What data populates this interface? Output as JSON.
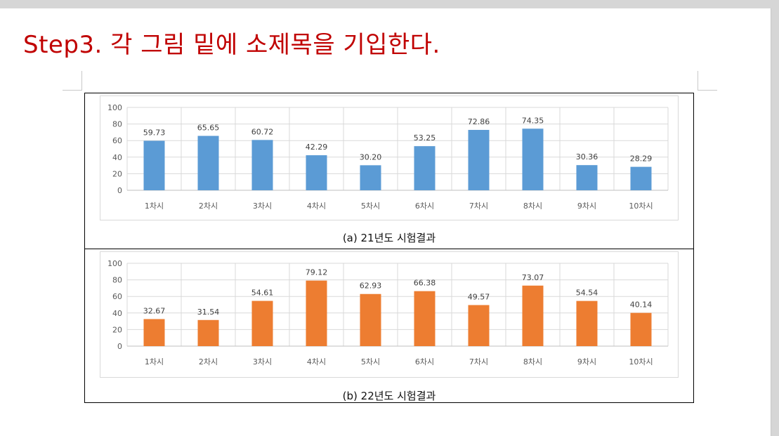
{
  "slide": {
    "title": "Step3. 각 그림 밑에 소제목을 기입한다."
  },
  "colors": {
    "title": "#c00000",
    "series_2021": "#5b9bd5",
    "series_2022": "#ed7d31",
    "gridline": "#d9d9d9",
    "tick_text": "#595959"
  },
  "figures": [
    {
      "caption": "(a) 21년도 시험결과"
    },
    {
      "caption": "(b) 22년도 시험결과"
    }
  ],
  "chart_data": [
    {
      "type": "bar",
      "title": "",
      "xlabel": "",
      "ylabel": "",
      "ylim": [
        0,
        100
      ],
      "yticks": [
        0,
        20,
        40,
        60,
        80,
        100
      ],
      "grid": true,
      "legend": "none",
      "color": "#5b9bd5",
      "categories": [
        "1차시",
        "2차시",
        "3차시",
        "4차시",
        "5차시",
        "6차시",
        "7차시",
        "8차시",
        "9차시",
        "10차시"
      ],
      "values": [
        59.73,
        65.65,
        60.72,
        42.29,
        30.2,
        53.25,
        72.86,
        74.35,
        30.36,
        28.29
      ],
      "value_labels": [
        "59.73",
        "65.65",
        "60.72",
        "42.29",
        "30.20",
        "53.25",
        "72.86",
        "74.35",
        "30.36",
        "28.29"
      ]
    },
    {
      "type": "bar",
      "title": "",
      "xlabel": "",
      "ylabel": "",
      "ylim": [
        0,
        100
      ],
      "yticks": [
        0,
        20,
        40,
        60,
        80,
        100
      ],
      "grid": true,
      "legend": "none",
      "color": "#ed7d31",
      "categories": [
        "1차시",
        "2차시",
        "3차시",
        "4차시",
        "5차시",
        "6차시",
        "7차시",
        "8차시",
        "9차시",
        "10차시"
      ],
      "values": [
        32.67,
        31.54,
        54.61,
        79.12,
        62.93,
        66.38,
        49.57,
        73.07,
        54.54,
        40.14
      ],
      "value_labels": [
        "32.67",
        "31.54",
        "54.61",
        "79.12",
        "62.93",
        "66.38",
        "49.57",
        "73.07",
        "54.54",
        "40.14"
      ]
    }
  ]
}
